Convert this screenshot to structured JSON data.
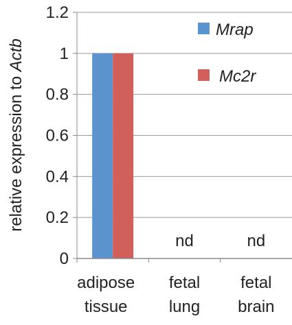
{
  "chart_data": {
    "type": "bar",
    "categories": [
      [
        "adipose",
        "tissue"
      ],
      [
        "fetal",
        "lung"
      ],
      [
        "fetal",
        "brain"
      ]
    ],
    "series": [
      {
        "name": "Mrap",
        "values": [
          1,
          null,
          null
        ],
        "color": "#5b93cf"
      },
      {
        "name": "Mc2r",
        "values": [
          1,
          null,
          null
        ],
        "color": "#d1605a"
      }
    ],
    "missing_labels": [
      "",
      "nd",
      "nd"
    ],
    "ylabel": {
      "prefix": "relative expression to ",
      "italic": "Actb"
    },
    "ylim": [
      0,
      1.2
    ],
    "yticks": [
      "0",
      "0.2",
      "0.4",
      "0.6",
      "0.8",
      "1",
      "1.2"
    ],
    "grid": true,
    "legend_position": "top-right"
  }
}
